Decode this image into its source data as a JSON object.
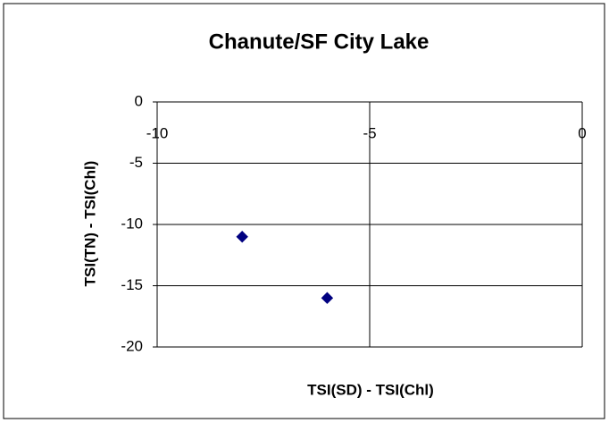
{
  "chart_data": {
    "type": "scatter",
    "title": "Chanute/SF City Lake",
    "x_label": "TSI(SD) - TSI(Chl)",
    "y_label": "TSI(TN) - TSI(Chl)",
    "x": [
      -8,
      -6
    ],
    "values": [
      -11,
      -16
    ],
    "color": "#000080",
    "xlim": [
      -10,
      0
    ],
    "xticks": [
      -10,
      -5,
      0
    ],
    "ylim": [
      -20,
      0
    ],
    "yticks": [
      0,
      -5,
      -10,
      -15,
      -20
    ],
    "grid": true
  }
}
